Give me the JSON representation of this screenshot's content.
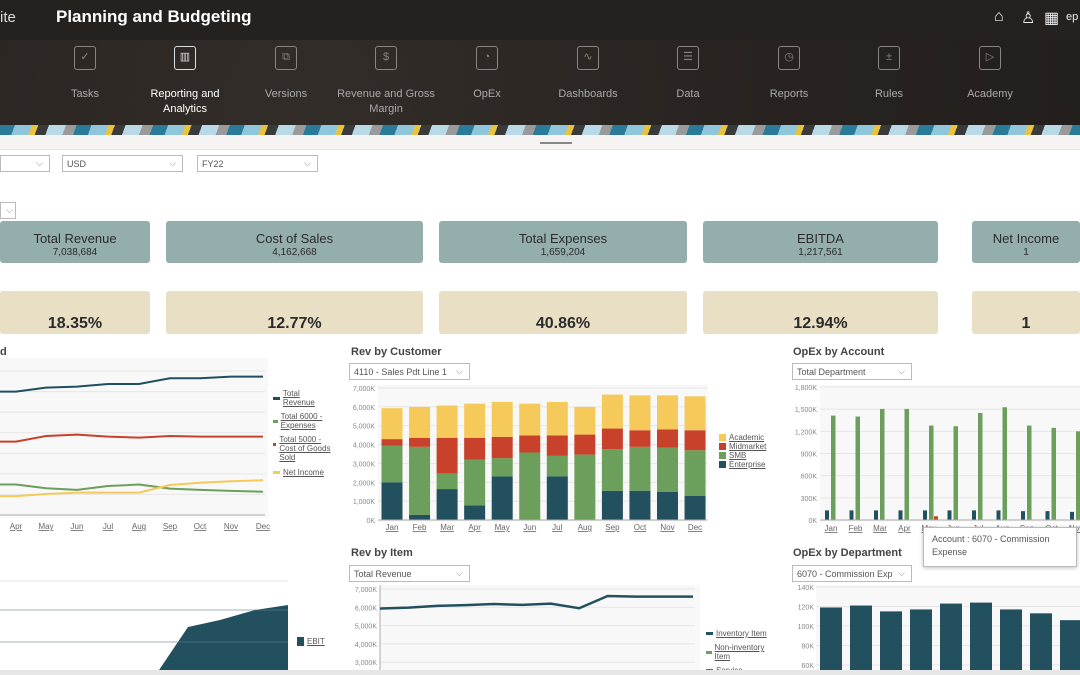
{
  "header": {
    "suite_fragment": "ite",
    "title": "Planning and Budgeting",
    "user_fragment": "ep"
  },
  "header_icons": [
    "home-icon",
    "accessibility-icon",
    "apps-grid-icon"
  ],
  "nav": [
    {
      "label": "Tasks",
      "icon": "clipboard-check-icon",
      "glyph": "✓"
    },
    {
      "label": "Reporting and Analytics",
      "icon": "report-layout-icon",
      "glyph": "▥",
      "active": true
    },
    {
      "label": "Versions",
      "icon": "puzzle-icon",
      "glyph": "⧉"
    },
    {
      "label": "Revenue and Gross Margin",
      "icon": "dollar-coin-icon",
      "glyph": "$"
    },
    {
      "label": "OpEx",
      "icon": "wallet-icon",
      "glyph": "◔"
    },
    {
      "label": "Dashboards",
      "icon": "monitor-pulse-icon",
      "glyph": "∿"
    },
    {
      "label": "Data",
      "icon": "table-icon",
      "glyph": "☰"
    },
    {
      "label": "Reports",
      "icon": "report-doc-icon",
      "glyph": "◷"
    },
    {
      "label": "Rules",
      "icon": "calculator-icon",
      "glyph": "±"
    },
    {
      "label": "Academy",
      "icon": "video-play-icon",
      "glyph": "▷"
    }
  ],
  "filters": [
    {
      "value": ""
    },
    {
      "value": "USD"
    },
    {
      "value": "FY22"
    }
  ],
  "small_select": {
    "value": ""
  },
  "kpis": [
    {
      "label": "Total Revenue",
      "value": "7,038,684",
      "pct": "18.35%"
    },
    {
      "label": "Cost of Sales",
      "value": "4,162,668",
      "pct": "12.77%"
    },
    {
      "label": "Total Expenses",
      "value": "1,659,204",
      "pct": "40.86%"
    },
    {
      "label": "EBITDA",
      "value": "1,217,561",
      "pct": "12.94%"
    },
    {
      "label": "Net Income",
      "value": "1",
      "pct": "1"
    }
  ],
  "colors": {
    "navy": "#23505e",
    "green": "#6c9e5c",
    "red": "#c8412b",
    "yellow": "#f6c95b",
    "kpi": "#94aeae",
    "pct": "#e8dfc4"
  },
  "trend": {
    "title_fragment": "d",
    "legend": [
      "Total Revenue",
      "Total 6000 - Expenses",
      "Total 5000 - Cost of Goods Sold",
      "Net Income"
    ]
  },
  "rev_by_customer": {
    "title": "Rev by Customer",
    "select": "4110 - Sales Pdt Line 1"
  },
  "opex_by_account": {
    "title": "OpEx by Account",
    "select": "Total Department"
  },
  "tooltip": {
    "text": "Account : 6070 - Commission Expense"
  },
  "opex_by_department": {
    "title": "OpEx by Department",
    "select": "6070 - Commission Exp"
  },
  "ebit": {
    "legend": "EBIT"
  },
  "rev_by_item": {
    "title": "Rev by Item",
    "select": "Total Revenue",
    "legend": [
      "Inventory Item",
      "Non-inventory Item",
      "Service"
    ]
  },
  "chart_data": [
    {
      "id": "trend",
      "type": "line",
      "categories": [
        "Apr",
        "May",
        "Jun",
        "Jul",
        "Aug",
        "Sep",
        "Oct",
        "Nov",
        "Dec"
      ],
      "series": [
        {
          "name": "Total Revenue",
          "color": "#1f4e60",
          "values": [
            6000,
            6190,
            6240,
            6370,
            6370,
            6650,
            6650,
            6730,
            6730
          ]
        },
        {
          "name": "Total 6000 - Expenses",
          "color": "#6c9e5c",
          "values": [
            1480,
            1300,
            1220,
            1410,
            1480,
            1280,
            1220,
            1170,
            1130
          ]
        },
        {
          "name": "Total 5000 - Cost of Goods Sold",
          "color": "#c8412b",
          "values": [
            3570,
            3840,
            3910,
            3810,
            3760,
            3840,
            3810,
            3810,
            3810
          ]
        },
        {
          "name": "Net Income",
          "color": "#f6c95b",
          "values": [
            920,
            1020,
            1090,
            1090,
            1090,
            1460,
            1570,
            1640,
            1690
          ]
        }
      ],
      "ylim": [
        0,
        7000
      ],
      "grid": true,
      "legend": "right"
    },
    {
      "id": "rev_by_customer",
      "type": "bar",
      "stacked": true,
      "categories": [
        "Jan",
        "Feb",
        "Mar",
        "Apr",
        "May",
        "Jun",
        "Jul",
        "Aug",
        "Sep",
        "Oct",
        "Nov",
        "Dec"
      ],
      "yticks": [
        "0K",
        "1,000K",
        "2,000K",
        "3,000K",
        "4,000K",
        "5,000K",
        "6,000K",
        "7,000K"
      ],
      "series": [
        {
          "name": "Enterprise",
          "color": "#23505e",
          "values": [
            2000,
            280,
            1640,
            780,
            2310,
            0,
            2310,
            0,
            1550,
            1550,
            1500,
            1290
          ]
        },
        {
          "name": "SMB",
          "color": "#6c9e5c",
          "values": [
            1950,
            3600,
            830,
            2430,
            970,
            3580,
            1090,
            3470,
            2210,
            2330,
            2340,
            2410
          ]
        },
        {
          "name": "Midmarket",
          "color": "#c8412b",
          "values": [
            340,
            480,
            1890,
            1150,
            1130,
            900,
            1080,
            1060,
            1090,
            880,
            960,
            1060
          ]
        },
        {
          "name": "Academic",
          "color": "#f6c95b",
          "values": [
            1640,
            1640,
            1710,
            1810,
            1850,
            1690,
            1780,
            1470,
            1800,
            1850,
            1810,
            1800
          ]
        }
      ],
      "ylim": [
        0,
        7000
      ],
      "unit": "K",
      "grid": true,
      "legend": "right"
    },
    {
      "id": "opex_by_account",
      "type": "bar",
      "categories": [
        "Jan",
        "Feb",
        "Mar",
        "Apr",
        "May",
        "Jun",
        "Jul",
        "Aug",
        "Sep",
        "Oct",
        "Nov"
      ],
      "yticks": [
        "0K",
        "300K",
        "600K",
        "900K",
        "1,200K",
        "1,500K",
        "1,800K"
      ],
      "series": [
        {
          "color": "#23505e",
          "values": [
            130,
            130,
            130,
            130,
            130,
            130,
            130,
            130,
            120,
            120,
            110
          ]
        },
        {
          "color": "#6c9e5c",
          "values": [
            1413,
            1400,
            1503,
            1503,
            1278,
            1269,
            1449,
            1526,
            1278,
            1247,
            1200
          ]
        },
        {
          "color": "#c8412b",
          "values": [
            0,
            0,
            0,
            0,
            50,
            0,
            0,
            0,
            0,
            0,
            0
          ]
        }
      ],
      "ylim": [
        0,
        1800
      ],
      "unit": "K",
      "grid": true
    },
    {
      "id": "opex_by_department",
      "type": "bar",
      "yticks": [
        "60K",
        "80K",
        "100K",
        "120K",
        "140K"
      ],
      "values": [
        119,
        121,
        115,
        117,
        123,
        124,
        117,
        113,
        106
      ],
      "color": "#23505e",
      "ylim": [
        60,
        140
      ],
      "unit": "K",
      "grid": true
    },
    {
      "id": "ebit",
      "type": "area",
      "series": [
        {
          "name": "EBIT",
          "color": "#23505e",
          "values": [
            380,
            400,
            580,
            580,
            610,
            1100,
            1170,
            1270,
            1320
          ]
        }
      ],
      "grid": true,
      "legend": "right"
    },
    {
      "id": "rev_by_item",
      "type": "line",
      "yticks": [
        "3,000K",
        "4,000K",
        "5,000K",
        "6,000K",
        "7,000K"
      ],
      "series": [
        {
          "name": "Inventory Item",
          "color": "#23505e",
          "values": [
            5930,
            5980,
            6080,
            6120,
            6180,
            6130,
            6200,
            5950,
            6620,
            6580,
            6580,
            6580
          ]
        }
      ],
      "ylim": [
        3000,
        7000
      ],
      "unit": "K",
      "grid": true,
      "legend": "right"
    }
  ]
}
